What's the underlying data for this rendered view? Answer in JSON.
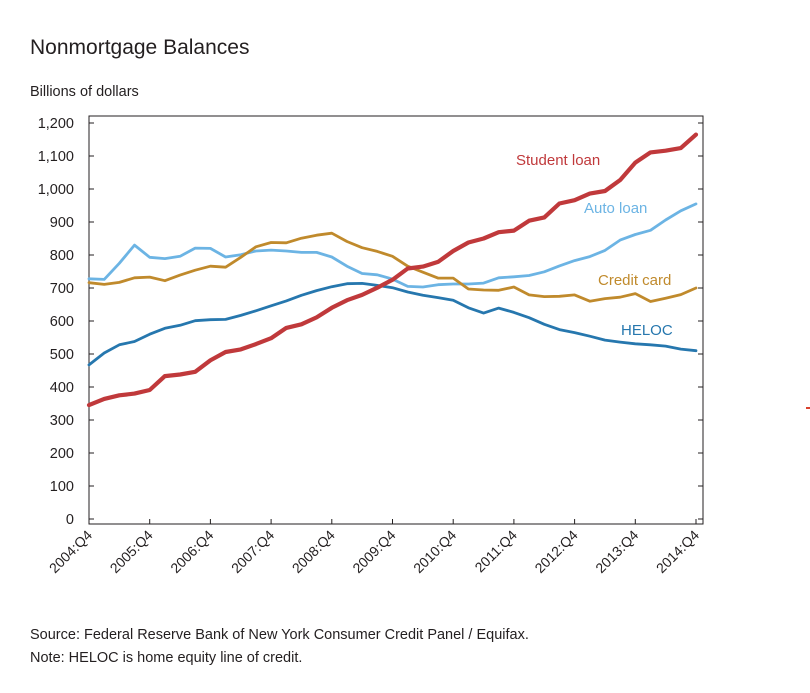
{
  "header": {
    "title": "Nonmortgage Balances",
    "unit_label": "Billions of dollars"
  },
  "footer": {
    "source": "Source: Federal Reserve Bank of New York Consumer Credit Panel / Equifax.",
    "note": "Note: HELOC is home equity line of credit."
  },
  "chart_data": {
    "type": "line",
    "title": "Nonmortgage Balances",
    "ylabel": "Billions of dollars",
    "xlabel": "",
    "ylim": [
      0,
      1200
    ],
    "yticks": [
      0,
      100,
      200,
      300,
      400,
      500,
      600,
      700,
      800,
      900,
      1000,
      1100,
      1200
    ],
    "ytick_labels": [
      "0",
      "100",
      "200",
      "300",
      "400",
      "500",
      "600",
      "700",
      "800",
      "900",
      "1,000",
      "1,100",
      "1,200"
    ],
    "x_tick_labels": [
      "2004:Q4",
      "2005:Q4",
      "2006:Q4",
      "2007:Q4",
      "2008:Q4",
      "2009:Q4",
      "2010:Q4",
      "2011:Q4",
      "2012:Q4",
      "2013:Q4",
      "2014:Q4"
    ],
    "x_start": "2004:Q4",
    "x_end": "2015:Q1",
    "grid": false,
    "legend": "inline labels",
    "series": [
      {
        "name": "Student loan",
        "color": "#c0393b",
        "values": [
          345,
          364,
          375,
          380,
          391,
          433,
          438,
          446,
          481,
          506,
          514,
          530,
          548,
          579,
          590,
          611,
          640,
          663,
          679,
          701,
          725,
          759,
          765,
          779,
          812,
          838,
          850,
          869,
          874,
          904,
          914,
          956,
          966,
          986,
          994,
          1027,
          1080,
          1111,
          1116,
          1124,
          1165
        ]
      },
      {
        "name": "Auto loan",
        "color": "#6cb4e4",
        "values": [
          728,
          726,
          775,
          830,
          793,
          789,
          796,
          821,
          820,
          794,
          801,
          812,
          815,
          812,
          808,
          808,
          794,
          766,
          744,
          740,
          727,
          705,
          703,
          710,
          712,
          712,
          715,
          731,
          734,
          738,
          749,
          767,
          783,
          795,
          814,
          845,
          862,
          875,
          906,
          934,
          955
        ]
      },
      {
        "name": "Credit card",
        "color": "#c08a2c",
        "values": [
          716,
          711,
          717,
          731,
          733,
          722,
          739,
          754,
          766,
          763,
          793,
          825,
          838,
          837,
          851,
          860,
          866,
          841,
          822,
          811,
          796,
          766,
          748,
          730,
          730,
          697,
          694,
          693,
          703,
          679,
          674,
          675,
          679,
          660,
          668,
          672,
          683,
          659,
          669,
          680,
          700
        ]
      },
      {
        "name": "HELOC",
        "color": "#2677ae",
        "values": [
          467,
          503,
          528,
          538,
          560,
          578,
          587,
          601,
          604,
          605,
          617,
          631,
          646,
          661,
          678,
          692,
          704,
          713,
          714,
          708,
          701,
          688,
          678,
          671,
          663,
          640,
          624,
          639,
          626,
          610,
          590,
          574,
          565,
          554,
          542,
          536,
          531,
          528,
          524,
          515,
          510
        ]
      }
    ]
  }
}
